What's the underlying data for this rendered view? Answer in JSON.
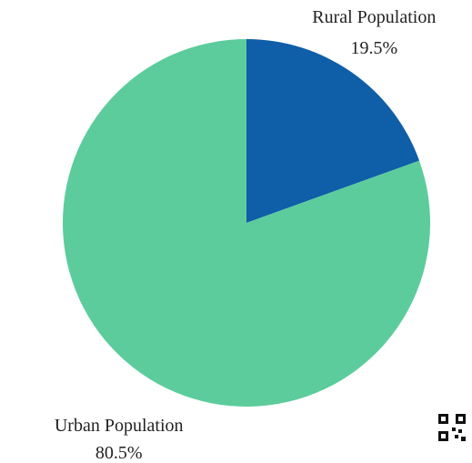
{
  "chart_data": {
    "type": "pie",
    "categories": [
      "Rural Population",
      "Urban Population"
    ],
    "values": [
      19.5,
      80.5
    ],
    "value_labels": [
      "19.5%",
      "80.5%"
    ],
    "colors": [
      "#0f5ea8",
      "#5ccc9c"
    ]
  }
}
